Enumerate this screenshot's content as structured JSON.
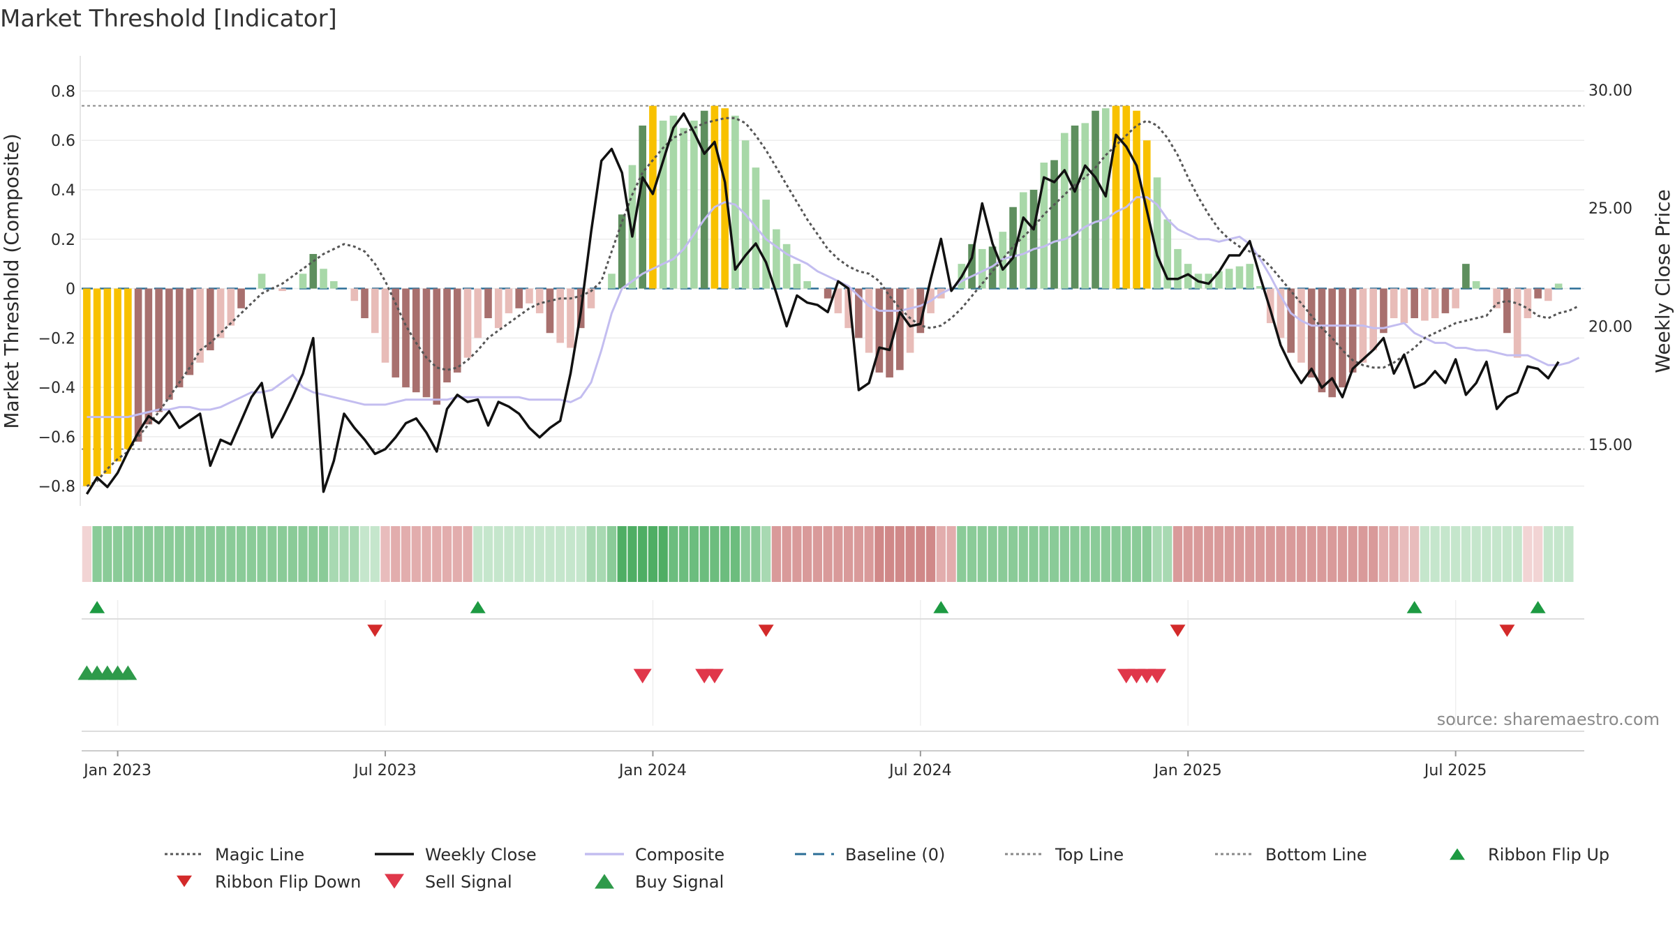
{
  "chart_data": {
    "type": "bar",
    "title": "Market Threshold [Indicator]",
    "ylabel": "Market Threshold (Composite)",
    "y2label": "Weekly Close Price",
    "ylim": [
      -0.88,
      0.9
    ],
    "y2lim": [
      12.4,
      31.0
    ],
    "yticks": [
      {
        "v": 0.8,
        "label": "0.8"
      },
      {
        "v": 0.6,
        "label": "0.6"
      },
      {
        "v": 0.4,
        "label": "0.4"
      },
      {
        "v": 0.2,
        "label": "0.2"
      },
      {
        "v": 0.0,
        "label": "0"
      },
      {
        "v": -0.2,
        "label": "−0.2"
      },
      {
        "v": -0.4,
        "label": "−0.4"
      },
      {
        "v": -0.6,
        "label": "−0.6"
      },
      {
        "v": -0.8,
        "label": "−0.8"
      }
    ],
    "y2ticks": [
      {
        "v": 30,
        "label": "30.00"
      },
      {
        "v": 25,
        "label": "25.00"
      },
      {
        "v": 20,
        "label": "20.00"
      },
      {
        "v": 15,
        "label": "15.00"
      }
    ],
    "xticks": [
      {
        "week": 3,
        "label": "Jan 2023"
      },
      {
        "week": 29,
        "label": "Jul 2023"
      },
      {
        "week": 55,
        "label": "Jan 2024"
      },
      {
        "week": 81,
        "label": "Jul 2024"
      },
      {
        "week": 107,
        "label": "Jan 2025"
      },
      {
        "week": 133,
        "label": "Jul 2025"
      }
    ],
    "n_weeks": 146,
    "top_line": 0.74,
    "bottom_line": -0.65,
    "composite_bars": [
      -0.8,
      -0.76,
      -0.75,
      -0.7,
      -0.65,
      -0.62,
      -0.55,
      -0.5,
      -0.45,
      -0.4,
      -0.35,
      -0.3,
      -0.25,
      -0.2,
      -0.15,
      -0.08,
      0.0,
      0.06,
      0.0,
      -0.01,
      0.0,
      0.06,
      0.14,
      0.08,
      0.03,
      0.0,
      -0.05,
      -0.12,
      -0.18,
      -0.3,
      -0.36,
      -0.4,
      -0.42,
      -0.44,
      -0.47,
      -0.38,
      -0.34,
      -0.28,
      -0.2,
      -0.12,
      -0.16,
      -0.1,
      -0.08,
      -0.06,
      -0.1,
      -0.18,
      -0.22,
      -0.24,
      -0.16,
      -0.08,
      0.0,
      0.06,
      0.3,
      0.5,
      0.66,
      0.74,
      0.68,
      0.7,
      0.65,
      0.68,
      0.72,
      0.74,
      0.73,
      0.7,
      0.6,
      0.49,
      0.36,
      0.24,
      0.18,
      0.1,
      0.03,
      0.0,
      -0.04,
      -0.1,
      -0.16,
      -0.2,
      -0.26,
      -0.34,
      -0.36,
      -0.33,
      -0.26,
      -0.18,
      -0.1,
      -0.04,
      0.0,
      0.1,
      0.18,
      0.16,
      0.17,
      0.23,
      0.33,
      0.39,
      0.4,
      0.51,
      0.52,
      0.63,
      0.66,
      0.67,
      0.72,
      0.73,
      0.74,
      0.74,
      0.72,
      0.6,
      0.45,
      0.28,
      0.16,
      0.1,
      0.06,
      0.06,
      0.07,
      0.08,
      0.09,
      0.1,
      0.01,
      -0.14,
      -0.2,
      -0.26,
      -0.3,
      -0.36,
      -0.42,
      -0.44,
      -0.4,
      -0.34,
      -0.3,
      -0.25,
      -0.18,
      -0.12,
      -0.14,
      -0.12,
      -0.13,
      -0.12,
      -0.1,
      -0.08,
      0.1,
      0.03,
      0.0,
      -0.08,
      -0.18,
      -0.28,
      -0.12,
      -0.04,
      -0.05,
      0.02
    ],
    "bar_highlight_weeks": [
      0,
      1,
      2,
      3,
      4,
      55,
      61,
      62,
      100,
      101,
      102,
      103
    ],
    "weekly_close": [
      12.9,
      13.6,
      13.2,
      13.8,
      14.7,
      15.5,
      16.2,
      15.9,
      16.4,
      15.7,
      16.0,
      16.3,
      14.1,
      15.2,
      15.0,
      16.0,
      17.0,
      17.6,
      15.3,
      16.1,
      17.0,
      18.0,
      19.5,
      13.0,
      14.3,
      16.3,
      15.7,
      15.2,
      14.6,
      14.8,
      15.3,
      15.9,
      16.1,
      15.5,
      14.7,
      16.5,
      17.1,
      16.8,
      16.9,
      15.8,
      16.8,
      16.6,
      16.3,
      15.7,
      15.3,
      15.7,
      16.0,
      18.0,
      20.6,
      24.0,
      27.0,
      27.5,
      26.5,
      23.8,
      26.3,
      25.6,
      27.0,
      28.4,
      29.0,
      28.2,
      27.3,
      27.8,
      26.1,
      22.4,
      23.0,
      23.5,
      22.7,
      21.4,
      20.0,
      21.3,
      21.0,
      20.9,
      20.6,
      21.9,
      21.6,
      17.3,
      17.6,
      19.1,
      19.0,
      20.6,
      20.0,
      20.1,
      22.0,
      23.7,
      21.5,
      22.1,
      22.9,
      25.2,
      23.5,
      22.4,
      22.9,
      24.6,
      24.1,
      26.3,
      26.1,
      26.6,
      25.7,
      26.8,
      26.3,
      25.5,
      28.1,
      27.6,
      26.8,
      24.9,
      23.0,
      22.0,
      22.0,
      22.2,
      21.9,
      21.8,
      22.3,
      23.0,
      23.0,
      23.6,
      22.1,
      20.7,
      19.2,
      18.3,
      17.6,
      18.2,
      17.4,
      17.8,
      17.0,
      18.2,
      18.6,
      19.0,
      19.5,
      18.0,
      18.8,
      17.4,
      17.6,
      18.1,
      17.6,
      18.6,
      17.1,
      17.6,
      18.5,
      16.5,
      17.0,
      17.2,
      18.3,
      18.2,
      17.8,
      18.5
    ],
    "composite_line": [
      -0.52,
      -0.52,
      -0.52,
      -0.52,
      -0.52,
      -0.51,
      -0.5,
      -0.49,
      -0.49,
      -0.48,
      -0.48,
      -0.49,
      -0.49,
      -0.48,
      -0.46,
      -0.44,
      -0.42,
      -0.42,
      -0.41,
      -0.38,
      -0.35,
      -0.4,
      -0.42,
      -0.43,
      -0.44,
      -0.45,
      -0.46,
      -0.47,
      -0.47,
      -0.47,
      -0.46,
      -0.45,
      -0.45,
      -0.45,
      -0.45,
      -0.45,
      -0.44,
      -0.44,
      -0.44,
      -0.44,
      -0.44,
      -0.44,
      -0.44,
      -0.45,
      -0.45,
      -0.45,
      -0.45,
      -0.46,
      -0.44,
      -0.38,
      -0.25,
      -0.1,
      0.0,
      0.03,
      0.06,
      0.08,
      0.1,
      0.12,
      0.16,
      0.22,
      0.28,
      0.33,
      0.35,
      0.34,
      0.3,
      0.25,
      0.2,
      0.17,
      0.14,
      0.12,
      0.1,
      0.07,
      0.05,
      0.03,
      0.01,
      -0.03,
      -0.07,
      -0.09,
      -0.09,
      -0.09,
      -0.08,
      -0.07,
      -0.05,
      -0.02,
      0.0,
      0.03,
      0.05,
      0.07,
      0.09,
      0.12,
      0.13,
      0.14,
      0.16,
      0.17,
      0.19,
      0.2,
      0.22,
      0.25,
      0.27,
      0.28,
      0.31,
      0.33,
      0.37,
      0.37,
      0.34,
      0.28,
      0.24,
      0.22,
      0.2,
      0.2,
      0.19,
      0.2,
      0.21,
      0.18,
      0.12,
      0.05,
      -0.03,
      -0.1,
      -0.13,
      -0.15,
      -0.15,
      -0.15,
      -0.15,
      -0.15,
      -0.15,
      -0.16,
      -0.16,
      -0.15,
      -0.14,
      -0.18,
      -0.2,
      -0.22,
      -0.22,
      -0.24,
      -0.24,
      -0.25,
      -0.25,
      -0.26,
      -0.27,
      -0.27,
      -0.27,
      -0.29,
      -0.31,
      -0.31,
      -0.3,
      -0.28
    ],
    "magic_line": [
      -0.8,
      -0.78,
      -0.73,
      -0.69,
      -0.66,
      -0.6,
      -0.55,
      -0.5,
      -0.44,
      -0.38,
      -0.32,
      -0.25,
      -0.22,
      -0.18,
      -0.14,
      -0.1,
      -0.06,
      -0.02,
      0.0,
      0.02,
      0.05,
      0.08,
      0.11,
      0.14,
      0.16,
      0.18,
      0.17,
      0.15,
      0.1,
      0.03,
      -0.06,
      -0.15,
      -0.22,
      -0.28,
      -0.32,
      -0.33,
      -0.32,
      -0.29,
      -0.25,
      -0.2,
      -0.17,
      -0.14,
      -0.11,
      -0.08,
      -0.06,
      -0.05,
      -0.04,
      -0.04,
      -0.03,
      -0.01,
      0.03,
      0.15,
      0.27,
      0.38,
      0.47,
      0.52,
      0.57,
      0.61,
      0.63,
      0.65,
      0.67,
      0.68,
      0.69,
      0.69,
      0.67,
      0.62,
      0.56,
      0.49,
      0.42,
      0.35,
      0.28,
      0.22,
      0.16,
      0.12,
      0.09,
      0.07,
      0.06,
      0.03,
      -0.03,
      -0.08,
      -0.12,
      -0.15,
      -0.16,
      -0.15,
      -0.12,
      -0.08,
      -0.03,
      0.02,
      0.07,
      0.12,
      0.17,
      0.21,
      0.25,
      0.3,
      0.34,
      0.38,
      0.42,
      0.45,
      0.49,
      0.54,
      0.58,
      0.62,
      0.66,
      0.68,
      0.66,
      0.61,
      0.54,
      0.45,
      0.37,
      0.3,
      0.24,
      0.2,
      0.17,
      0.15,
      0.13,
      0.09,
      0.04,
      -0.01,
      -0.06,
      -0.11,
      -0.16,
      -0.2,
      -0.25,
      -0.29,
      -0.31,
      -0.32,
      -0.32,
      -0.3,
      -0.27,
      -0.24,
      -0.2,
      -0.18,
      -0.16,
      -0.14,
      -0.13,
      -0.12,
      -0.11,
      -0.06,
      -0.05,
      -0.06,
      -0.08,
      -0.11,
      -0.12,
      -0.1,
      -0.09,
      -0.07
    ],
    "ribbon_colors": [
      "#f2d4d4",
      "#8acb98",
      "#8acb98",
      "#8acb98",
      "#8acb98",
      "#8acb98",
      "#8acb98",
      "#8acb98",
      "#8acb98",
      "#8acb98",
      "#8acb98",
      "#8acb98",
      "#8acb98",
      "#8acb98",
      "#8acb98",
      "#8acb98",
      "#8acb98",
      "#8acb98",
      "#8acb98",
      "#8acb98",
      "#8acb98",
      "#8acb98",
      "#8acb98",
      "#8acb98",
      "#a8d9b2",
      "#a8d9b2",
      "#a8d9b2",
      "#c5e6cc",
      "#c5e6cc",
      "#e8bcbc",
      "#e2adad",
      "#e2adad",
      "#e2adad",
      "#e2adad",
      "#e2adad",
      "#e2adad",
      "#e2adad",
      "#e2adad",
      "#c5e6cc",
      "#c5e6cc",
      "#c5e6cc",
      "#c5e6cc",
      "#c5e6cc",
      "#c5e6cc",
      "#c5e6cc",
      "#c5e6cc",
      "#c5e6cc",
      "#c5e6cc",
      "#c5e6cc",
      "#a8d9b2",
      "#a8d9b2",
      "#8acb98",
      "#4fae64",
      "#4fae64",
      "#4fae64",
      "#4fae64",
      "#4fae64",
      "#6cbd7e",
      "#6cbd7e",
      "#6cbd7e",
      "#6cbd7e",
      "#6cbd7e",
      "#6cbd7e",
      "#6cbd7e",
      "#8acb98",
      "#8acb98",
      "#a8d9b2",
      "#d99a9a",
      "#d99a9a",
      "#d99a9a",
      "#d99a9a",
      "#d99a9a",
      "#d99a9a",
      "#d99a9a",
      "#d99a9a",
      "#d99a9a",
      "#d99a9a",
      "#d08888",
      "#d08888",
      "#d08888",
      "#d08888",
      "#d08888",
      "#d08888",
      "#e2adad",
      "#e2adad",
      "#8acb98",
      "#8acb98",
      "#8acb98",
      "#8acb98",
      "#8acb98",
      "#8acb98",
      "#8acb98",
      "#8acb98",
      "#8acb98",
      "#8acb98",
      "#8acb98",
      "#8acb98",
      "#8acb98",
      "#8acb98",
      "#8acb98",
      "#8acb98",
      "#8acb98",
      "#8acb98",
      "#8acb98",
      "#a8d9b2",
      "#a8d9b2",
      "#d99a9a",
      "#d99a9a",
      "#d99a9a",
      "#d99a9a",
      "#d99a9a",
      "#d99a9a",
      "#d99a9a",
      "#d99a9a",
      "#d99a9a",
      "#d99a9a",
      "#d99a9a",
      "#d99a9a",
      "#d99a9a",
      "#d99a9a",
      "#d99a9a",
      "#d99a9a",
      "#d99a9a",
      "#d99a9a",
      "#d99a9a",
      "#d99a9a",
      "#e2adad",
      "#e2adad",
      "#e8bcbc",
      "#e8bcbc",
      "#c5e6cc",
      "#c5e6cc",
      "#c5e6cc",
      "#c5e6cc",
      "#c5e6cc",
      "#c5e6cc",
      "#c5e6cc",
      "#c5e6cc",
      "#c5e6cc",
      "#c5e6cc",
      "#f2d4d4",
      "#f2d4d4",
      "#c5e6cc",
      "#c5e6cc",
      "#c5e6cc"
    ],
    "ribbon_flip_up_weeks": [
      1,
      38,
      83,
      129,
      141
    ],
    "ribbon_flip_down_weeks": [
      28,
      66,
      106,
      138
    ],
    "buy_signal_weeks": [
      0,
      1,
      2,
      3,
      4
    ],
    "sell_signal_weeks": [
      54,
      60,
      61,
      101,
      102,
      103,
      104
    ],
    "legend": [
      {
        "label": "Magic Line",
        "kind": "dotted",
        "color": "#555555"
      },
      {
        "label": "Weekly Close",
        "kind": "solid",
        "color": "#111111"
      },
      {
        "label": "Composite",
        "kind": "solid",
        "color": "#c3bdf0"
      },
      {
        "label": "Baseline (0)",
        "kind": "dashed",
        "color": "#2a6d96"
      },
      {
        "label": "Top Line",
        "kind": "dotted",
        "color": "#888888"
      },
      {
        "label": "Bottom Line",
        "kind": "dotted",
        "color": "#888888"
      },
      {
        "label": "Ribbon Flip Up",
        "kind": "tri-up",
        "color": "#1d9a42"
      },
      {
        "label": "Ribbon Flip Down",
        "kind": "tri-down",
        "color": "#d32a2a"
      },
      {
        "label": "Sell Signal",
        "kind": "tri-down-lg",
        "color": "#e0374a"
      },
      {
        "label": "Buy Signal",
        "kind": "tri-up-lg",
        "color": "#2e9a4a"
      }
    ],
    "source": "source: sharemaestro.com"
  },
  "colors": {
    "bar_highlight": "#f8c100",
    "bar_pos_strong": "#5e8f5e",
    "bar_pos_weak": "#a8d8a8",
    "bar_neg_strong": "#a8706e",
    "bar_neg_weak": "#e8bcb8",
    "baseline": "#2a6d96",
    "grid": "#ececec"
  }
}
